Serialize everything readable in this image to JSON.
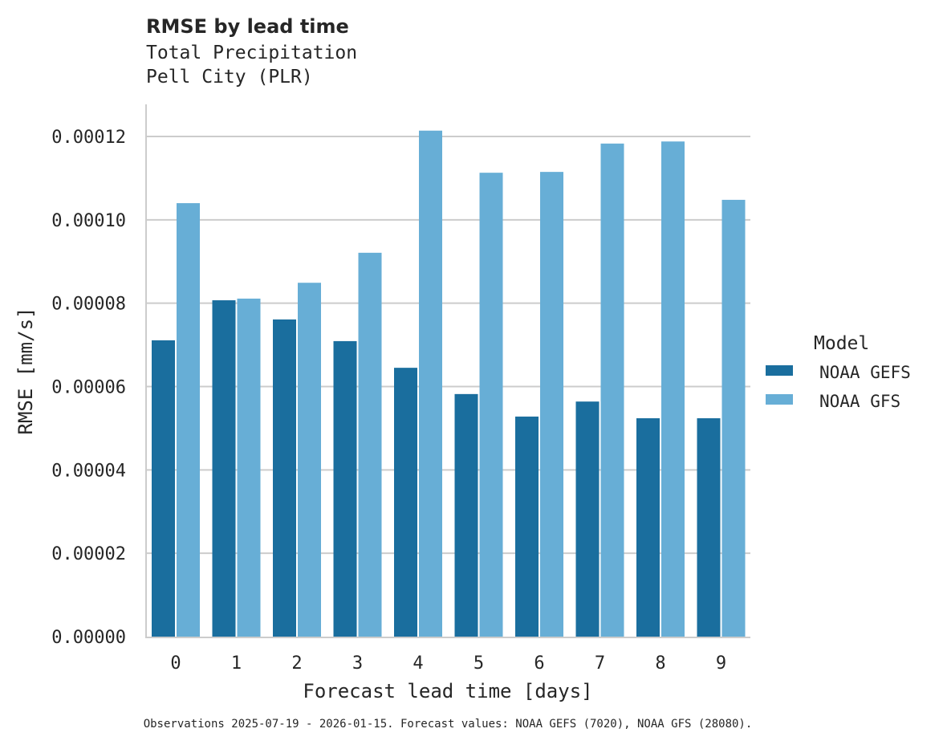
{
  "chart_data": {
    "type": "bar",
    "title": "RMSE by lead time",
    "subtitle_lines": [
      "Total Precipitation",
      "Pell City (PLR)"
    ],
    "xlabel": "Forecast lead time [days]",
    "ylabel": "RMSE [mm/s]",
    "categories": [
      "0",
      "1",
      "2",
      "3",
      "4",
      "5",
      "6",
      "7",
      "8",
      "9"
    ],
    "ylim": [
      0,
      0.000128
    ],
    "yticks": [
      0,
      2e-05,
      4e-05,
      6e-05,
      8e-05,
      0.0001,
      0.00012
    ],
    "ytick_labels": [
      "0.00000",
      "0.00002",
      "0.00004",
      "0.00006",
      "0.00008",
      "0.00010",
      "0.00012"
    ],
    "grid": "horizontal",
    "legend": {
      "title": "Model",
      "placement": "right"
    },
    "series": [
      {
        "name": "NOAA GEFS",
        "color": "#1a6e9e",
        "values": [
          7.11e-05,
          8.07e-05,
          7.61e-05,
          7.09e-05,
          6.45e-05,
          5.82e-05,
          5.28e-05,
          5.64e-05,
          5.24e-05,
          5.24e-05
        ]
      },
      {
        "name": "NOAA GFS",
        "color": "#67aed6",
        "values": [
          0.000104,
          8.11e-05,
          8.49e-05,
          9.21e-05,
          0.0001214,
          0.0001113,
          0.0001115,
          0.0001183,
          0.0001188,
          0.0001048
        ]
      }
    ],
    "footnote": "Observations 2025-07-19 - 2026-01-15. Forecast values: NOAA GEFS (7020), NOAA GFS (28080)."
  }
}
